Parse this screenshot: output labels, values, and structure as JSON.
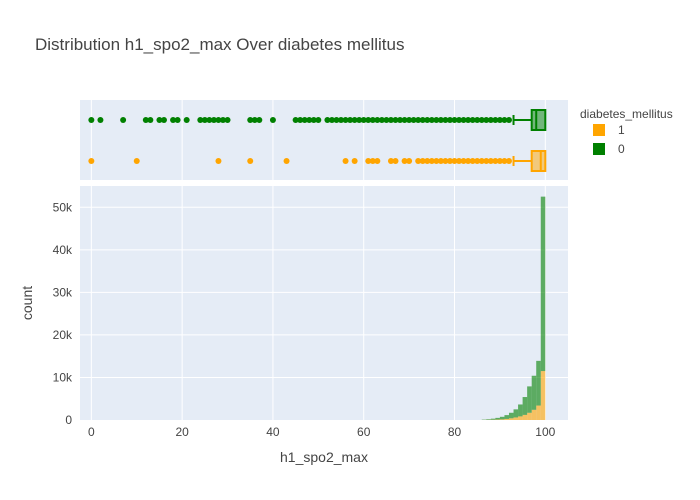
{
  "chart_data": {
    "type": "histogram",
    "title": "Distribution h1_spo2_max Over diabetes mellitus",
    "xlabel": "h1_spo2_max",
    "ylabel": "count",
    "xlim": [
      -2.5,
      105
    ],
    "ylim": [
      0,
      55000
    ],
    "x_ticks": [
      0,
      20,
      40,
      60,
      80,
      100
    ],
    "x_tick_labels": [
      "0",
      "20",
      "40",
      "60",
      "80",
      "100"
    ],
    "y_ticks": [
      0,
      10000,
      20000,
      30000,
      40000,
      50000
    ],
    "y_tick_labels": [
      "0",
      "10k",
      "20k",
      "30k",
      "40k",
      "50k"
    ],
    "barmode": "stacked",
    "grid": true,
    "legend": {
      "title": "diabetes_mellitus",
      "placement": "top-right",
      "entries": [
        {
          "label": "1",
          "color": "#FFA500"
        },
        {
          "label": "0",
          "color": "#008000"
        }
      ]
    },
    "bins": {
      "edges_x": [
        86,
        87,
        88,
        89,
        90,
        91,
        92,
        93,
        94,
        95,
        96,
        97,
        98,
        99,
        100
      ],
      "series": [
        {
          "key": "1",
          "color": "#FFA500",
          "values": [
            20,
            40,
            60,
            100,
            150,
            250,
            400,
            600,
            850,
            1200,
            1700,
            2400,
            3400,
            11500
          ]
        },
        {
          "key": "0",
          "color": "#008000",
          "values": [
            80,
            150,
            250,
            400,
            600,
            900,
            1300,
            1900,
            2800,
            4200,
            6200,
            8000,
            10500,
            41000
          ]
        }
      ]
    },
    "marginal_box": {
      "series": [
        {
          "key": "0",
          "color": "#008000",
          "q1": 97,
          "median": 98,
          "q3": 100,
          "lower_fence": 93,
          "upper_fence": 100,
          "outliers": [
            0,
            2,
            7,
            12,
            13,
            15,
            16,
            18,
            19,
            21,
            24,
            25,
            26,
            27,
            28,
            29,
            30,
            35,
            36,
            37,
            40,
            45,
            46,
            47,
            48,
            49,
            50,
            52,
            53,
            54,
            55,
            56,
            57,
            58,
            59,
            60,
            61,
            62,
            63,
            64,
            65,
            66,
            67,
            68,
            69,
            70,
            71,
            72,
            73,
            74,
            75,
            76,
            77,
            78,
            79,
            80,
            81,
            82,
            83,
            84,
            85,
            86,
            87,
            88,
            89,
            90,
            91,
            92
          ]
        },
        {
          "key": "1",
          "color": "#FFA500",
          "q1": 97,
          "median": 99,
          "q3": 100,
          "lower_fence": 93,
          "upper_fence": 100,
          "outliers": [
            0,
            10,
            28,
            35,
            43,
            56,
            58,
            61,
            62,
            63,
            66,
            67,
            69,
            70,
            72,
            73,
            74,
            75,
            76,
            77,
            78,
            79,
            80,
            81,
            82,
            83,
            84,
            85,
            86,
            87,
            88,
            89,
            90,
            91,
            92
          ]
        }
      ]
    }
  }
}
